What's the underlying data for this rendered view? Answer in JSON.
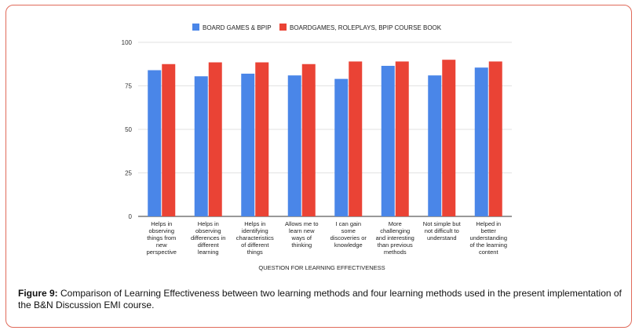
{
  "chart_data": {
    "type": "bar",
    "categories": [
      [
        "Helps in",
        "observing",
        "things from",
        "new",
        "perspective"
      ],
      [
        "Helps in",
        "observing",
        "differences in",
        "different",
        "learning"
      ],
      [
        "Helps in",
        "identifying",
        "characteristics",
        "of different",
        "things"
      ],
      [
        "Allows me to",
        "learn new",
        "ways of",
        "thinking"
      ],
      [
        "I can gain",
        "some",
        "discoveries or",
        "knowledge"
      ],
      [
        "More",
        "challenging",
        "and interesting",
        "than previous",
        "methods"
      ],
      [
        "Not simple but",
        "not difficult to",
        "understand"
      ],
      [
        "Helped in",
        "better",
        "understanding",
        "of the learning",
        "content"
      ]
    ],
    "series": [
      {
        "name": "BOARD GAMES & BPIP",
        "color": "#4a86e8",
        "values": [
          84,
          80.5,
          82,
          81,
          79,
          86.5,
          81,
          85.5
        ]
      },
      {
        "name": "BOARDGAMES, ROLEPLAYS, BPIP COURSE BOOK",
        "color": "#ea4335",
        "values": [
          87.5,
          88.5,
          88.5,
          87.5,
          89,
          89,
          90,
          89
        ]
      }
    ],
    "yticks": [
      "0",
      "25",
      "50",
      "75",
      "100"
    ],
    "ylim": [
      0,
      100
    ],
    "xlabel": "QUESTION FOR LEARNING EFFECTIVENESS",
    "ylabel": "",
    "grid": true,
    "legend": "top"
  },
  "caption": {
    "label": "Figure 9:",
    "text": " Comparison of Learning Effectiveness between two learning methods and four learning methods used in the present implementation of the B&N Discussion EMI course."
  }
}
